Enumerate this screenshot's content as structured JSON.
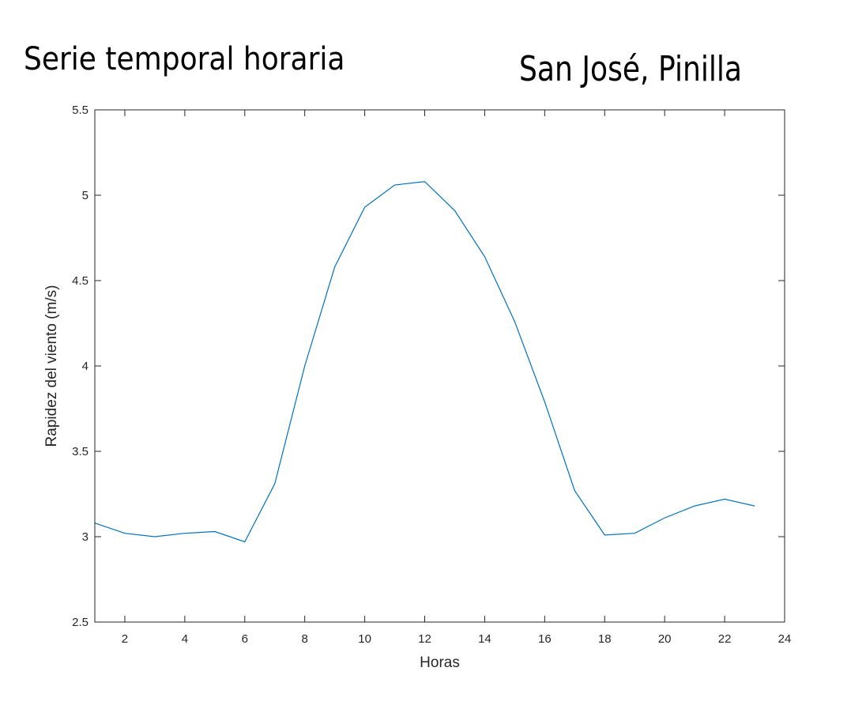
{
  "titles": {
    "left": "Serie temporal horaria",
    "right": "San José, Pinilla"
  },
  "chart_data": {
    "type": "line",
    "xlabel": "Horas",
    "ylabel": "Rapidez del viento (m/s)",
    "xlim": [
      1,
      24
    ],
    "ylim": [
      2.5,
      5.5
    ],
    "xticks": [
      2,
      4,
      6,
      8,
      10,
      12,
      14,
      16,
      18,
      20,
      22,
      24
    ],
    "yticks": [
      2.5,
      3,
      3.5,
      4,
      4.5,
      5,
      5.5
    ],
    "grid": false,
    "line_color": "#0072bd",
    "series": [
      {
        "x": [
          1,
          2,
          3,
          4,
          5,
          6,
          7,
          8,
          9,
          10,
          11,
          12,
          13,
          14,
          15,
          16,
          17,
          18,
          19,
          20,
          21,
          22,
          23
        ],
        "values": [
          3.08,
          3.02,
          3.0,
          3.02,
          3.03,
          2.97,
          3.31,
          4.0,
          4.58,
          4.93,
          5.06,
          5.08,
          4.91,
          4.64,
          4.26,
          3.79,
          3.27,
          3.01,
          3.02,
          3.11,
          3.18,
          3.22,
          3.18
        ]
      }
    ]
  }
}
